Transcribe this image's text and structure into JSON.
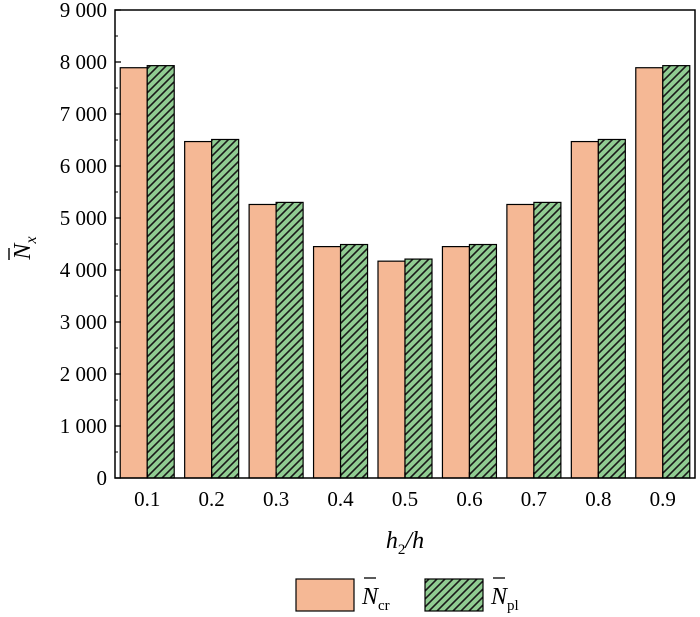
{
  "chart_data": {
    "type": "bar",
    "categories": [
      "0.1",
      "0.2",
      "0.3",
      "0.4",
      "0.5",
      "0.6",
      "0.7",
      "0.8",
      "0.9"
    ],
    "series": [
      {
        "name": "N̄cr",
        "name_base": "N",
        "name_sub": "cr",
        "color": "#F5B895",
        "pattern": "solid",
        "values": [
          7890,
          6470,
          5260,
          4450,
          4170,
          4450,
          5260,
          6470,
          7890
        ]
      },
      {
        "name": "N̄pl",
        "name_base": "N",
        "name_sub": "pl",
        "color": "#90CC92",
        "pattern": "diagonal-hatch",
        "values": [
          7930,
          6510,
          5300,
          4490,
          4210,
          4490,
          5300,
          6510,
          7930
        ]
      }
    ],
    "xlabel": "h2/h",
    "xlabel_base": "h",
    "xlabel_sub": "2",
    "xlabel_rest": "/h",
    "ylabel": "N̄x",
    "ylabel_base": "N",
    "ylabel_sub": "x",
    "ylim": [
      0,
      9000
    ],
    "yticks": [
      0,
      1000,
      2000,
      3000,
      4000,
      5000,
      6000,
      7000,
      8000,
      9000
    ],
    "ytick_labels": [
      "0",
      "1 000",
      "2 000",
      "3 000",
      "4 000",
      "5 000",
      "6 000",
      "7 000",
      "8 000",
      "9 000"
    ],
    "grid": false,
    "legend_position": "bottom-center"
  }
}
